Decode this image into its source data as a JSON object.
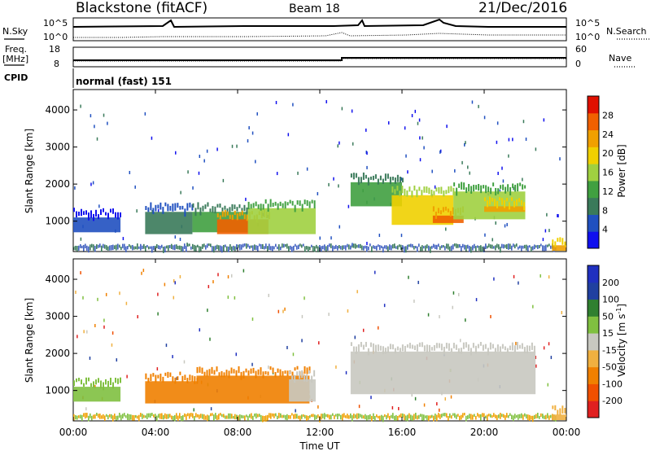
{
  "header": {
    "station": "Blackstone (fitACF)",
    "beam": "Beam 18",
    "date": "21/Dec/2016"
  },
  "summary": {
    "nsky_label": "N.Sky",
    "nsearch_label": "N.Search",
    "nsky_scale": [
      "10^5",
      "10^0"
    ],
    "nsearch_scale": [
      "10^5",
      "10^0"
    ],
    "freq_label": "Freq.",
    "freq_unit": "[MHz]",
    "freq_ticks": [
      "18",
      "8"
    ],
    "nave_label": "Nave",
    "nave_ticks": [
      "60",
      "0"
    ],
    "cpid_label": "CPID",
    "cpid_text": "normal (fast) 151"
  },
  "colors": {
    "power_scale": [
      "#1010ee",
      "#2050c0",
      "#3a7a5a",
      "#40a040",
      "#a0d040",
      "#f0d000",
      "#f0a000",
      "#f06000",
      "#e01000"
    ],
    "velocity_scale": [
      "#e02020",
      "#f05000",
      "#f08000",
      "#f0b040",
      "#c8c8c0",
      "#80c040",
      "#308030",
      "#2040a0",
      "#2030c0"
    ]
  },
  "chart_data": [
    {
      "type": "heatmap",
      "name": "power",
      "ylabel": "Slant Range [km]",
      "xlabel": "Time UT",
      "x_range_hours": [
        0,
        24
      ],
      "y_range_km": [
        180,
        4550
      ],
      "yticks": [
        "1000",
        "2000",
        "3000",
        "4000"
      ],
      "xticks": [
        "00:00",
        "04:00",
        "08:00",
        "12:00",
        "16:00",
        "20:00",
        "00:00"
      ],
      "colorbar_label": "Power [dB]",
      "colorbar_ticks": [
        "28",
        "24",
        "20",
        "16",
        "12",
        "8",
        "4"
      ],
      "colorbar_range": [
        0,
        30
      ],
      "bands": [
        {
          "t0": 0.0,
          "t1": 2.3,
          "r0": 700,
          "r1": 1100,
          "v": 6
        },
        {
          "t0": 3.5,
          "t1": 5.8,
          "r0": 650,
          "r1": 1250,
          "v": 8
        },
        {
          "t0": 5.8,
          "t1": 8.5,
          "r0": 700,
          "r1": 1250,
          "v": 12
        },
        {
          "t0": 7.0,
          "t1": 9.5,
          "r0": 650,
          "r1": 1050,
          "v": 26
        },
        {
          "t0": 8.5,
          "t1": 11.8,
          "r0": 650,
          "r1": 1350,
          "v": 14
        },
        {
          "t0": 13.5,
          "t1": 16.0,
          "r0": 1400,
          "r1": 2050,
          "v": 12
        },
        {
          "t0": 15.5,
          "t1": 18.5,
          "r0": 900,
          "r1": 1700,
          "v": 18
        },
        {
          "t0": 17.5,
          "t1": 19.0,
          "r0": 950,
          "r1": 1150,
          "v": 26
        },
        {
          "t0": 18.5,
          "t1": 22.0,
          "r0": 1050,
          "r1": 1800,
          "v": 14
        },
        {
          "t0": 20.0,
          "t1": 22.0,
          "r0": 1250,
          "r1": 1400,
          "v": 22
        },
        {
          "t0": 23.3,
          "t1": 24.0,
          "r0": 200,
          "r1": 350,
          "v": 22
        }
      ]
    },
    {
      "type": "heatmap",
      "name": "velocity",
      "ylabel": "Slant Range [km]",
      "xlabel": "Time UT",
      "x_range_hours": [
        0,
        24
      ],
      "y_range_km": [
        180,
        4550
      ],
      "yticks": [
        "1000",
        "2000",
        "3000",
        "4000"
      ],
      "xticks": [
        "00:00",
        "04:00",
        "08:00",
        "12:00",
        "16:00",
        "20:00",
        "00:00"
      ],
      "colorbar_label": "Velocity [m s",
      "colorbar_label_sup": "-1",
      "colorbar_label_end": "]",
      "colorbar_ticks": [
        "200",
        "100",
        "50",
        "15",
        "-15",
        "-50",
        "-100",
        "-200"
      ],
      "bands": [
        {
          "t0": 0.0,
          "t1": 2.3,
          "r0": 700,
          "r1": 1100,
          "v": 30
        },
        {
          "t0": 3.5,
          "t1": 6.0,
          "r0": 650,
          "r1": 1250,
          "v": -60
        },
        {
          "t0": 6.0,
          "t1": 11.5,
          "r0": 650,
          "r1": 1400,
          "v": -70
        },
        {
          "t0": 10.5,
          "t1": 11.8,
          "r0": 700,
          "r1": 1300,
          "v": 0
        },
        {
          "t0": 13.5,
          "t1": 22.5,
          "r0": 900,
          "r1": 2050,
          "v": 0
        },
        {
          "t0": 23.3,
          "t1": 24.0,
          "r0": 200,
          "r1": 350,
          "v": -20
        }
      ]
    }
  ],
  "axis": {
    "xlabel": "Time UT"
  }
}
